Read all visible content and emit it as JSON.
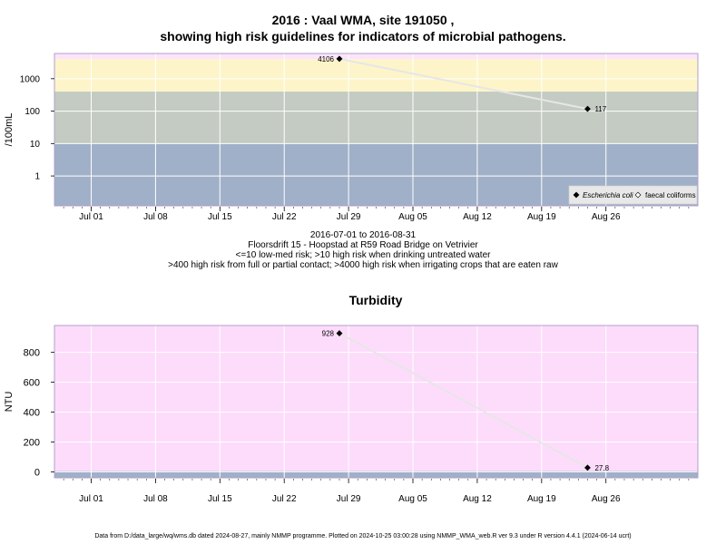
{
  "header": {
    "title_line1": "2016 : Vaal WMA, site 191050 ,",
    "title_line2": "showing high risk guidelines for indicators of microbial pathogens."
  },
  "captions": [
    "2016-07-01 to 2016-08-31",
    "Floorsdrift 15 - Hoopstad at R59 Road Bridge on Vetrivier",
    "<=10 low-med risk; >10 high risk when drinking untreated water",
    ">400 high risk from full or partial contact; >4000 high risk when irrigating crops that are eaten raw"
  ],
  "footer": "Data from D:/data_large/wq/wms.db dated 2024-08-27, mainly NMMP programme. Plotted on 2024-10-25 03:00:28 using NMMP_WMA_web.R ver 9.3 under R version 4.4.1 (2024-06-14 ucrt)",
  "colors": {
    "band_low": "#a0b0c8",
    "band_mid": "#c4cbc2",
    "band_high": "#fdf5c9",
    "band_top": "#fce4fb",
    "turb_bg": "#fddcfb",
    "turb_base": "#a0b0c8",
    "line": "#e6e6e6",
    "point": "#000000",
    "frame": "#b0a0c8"
  },
  "chart_data": [
    {
      "type": "scatter",
      "title": "",
      "ylabel": "/100mL",
      "yscale": "log",
      "ylim": [
        0.12,
        6000
      ],
      "xlim": [
        "2016-06-27",
        "2016-09-05"
      ],
      "ytick_values": [
        1,
        10,
        100,
        1000
      ],
      "ytick_labels": [
        "1",
        "10",
        "100",
        "1000"
      ],
      "xtick_dates": [
        "2016-07-01",
        "2016-07-08",
        "2016-07-15",
        "2016-07-22",
        "2016-07-29",
        "2016-08-05",
        "2016-08-12",
        "2016-08-19",
        "2016-08-26"
      ],
      "xtick_labels": [
        "Jul 01",
        "Jul 08",
        "Jul 15",
        "Jul 22",
        "Jul 29",
        "Aug 05",
        "Aug 12",
        "Aug 19",
        "Aug 26"
      ],
      "guideline_bands": [
        10,
        400,
        4000
      ],
      "series": [
        {
          "name": "Escherichia coli",
          "points": [
            {
              "x": "2016-07-28",
              "y": 4106,
              "label": "4106"
            },
            {
              "x": "2016-08-24",
              "y": 117,
              "label": "117"
            }
          ]
        }
      ],
      "legend": {
        "entries": [
          "Escherichia coli",
          "faecal coliforms"
        ],
        "placement": "bottom-right"
      },
      "grid": true
    },
    {
      "type": "scatter",
      "title": "Turbidity",
      "ylabel": "NTU",
      "ylim": [
        -40,
        980
      ],
      "xlim": [
        "2016-06-27",
        "2016-09-05"
      ],
      "ytick_values": [
        0,
        200,
        400,
        600,
        800
      ],
      "ytick_labels": [
        "0",
        "200",
        "400",
        "600",
        "800"
      ],
      "xtick_dates": [
        "2016-07-01",
        "2016-07-08",
        "2016-07-15",
        "2016-07-22",
        "2016-07-29",
        "2016-08-05",
        "2016-08-12",
        "2016-08-19",
        "2016-08-26"
      ],
      "xtick_labels": [
        "Jul 01",
        "Jul 08",
        "Jul 15",
        "Jul 22",
        "Jul 29",
        "Aug 05",
        "Aug 12",
        "Aug 19",
        "Aug 26"
      ],
      "baseline_band": 5,
      "series": [
        {
          "points": [
            {
              "x": "2016-07-28",
              "y": 928,
              "label": "928"
            },
            {
              "x": "2016-08-24",
              "y": 27.8,
              "label": "27.8"
            }
          ]
        }
      ],
      "grid": true
    }
  ]
}
